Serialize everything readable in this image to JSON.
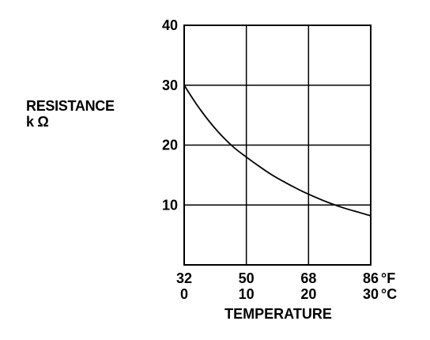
{
  "chart_data": {
    "type": "line",
    "ylabel_lines": [
      "RESISTANCE",
      "k Ω"
    ],
    "xlabel": "TEMPERATURE",
    "x_unit_primary": "°C",
    "x_unit_secondary": "°F",
    "xlim": [
      0,
      30
    ],
    "ylim": [
      0,
      40
    ],
    "y_ticks": [
      10,
      20,
      30,
      40
    ],
    "x_ticks": [
      {
        "celsius": 0,
        "fahrenheit": "32",
        "celsius_label": "0"
      },
      {
        "celsius": 10,
        "fahrenheit": "50",
        "celsius_label": "10"
      },
      {
        "celsius": 20,
        "fahrenheit": "68",
        "celsius_label": "20"
      },
      {
        "celsius": 30,
        "fahrenheit": "86",
        "celsius_label": "30"
      }
    ],
    "x_unit_labels": {
      "fahrenheit": "°F",
      "celsius": "°C"
    },
    "grid": true,
    "series": [
      {
        "x": [
          0,
          2,
          4,
          6,
          8,
          10,
          12,
          14,
          16,
          18,
          20,
          22,
          24,
          26,
          28,
          30
        ],
        "y": [
          30,
          26.8,
          24,
          21.6,
          19.6,
          18,
          16.5,
          15.1,
          13.9,
          12.8,
          11.8,
          10.9,
          10.1,
          9.4,
          8.8,
          8.2
        ]
      }
    ]
  }
}
